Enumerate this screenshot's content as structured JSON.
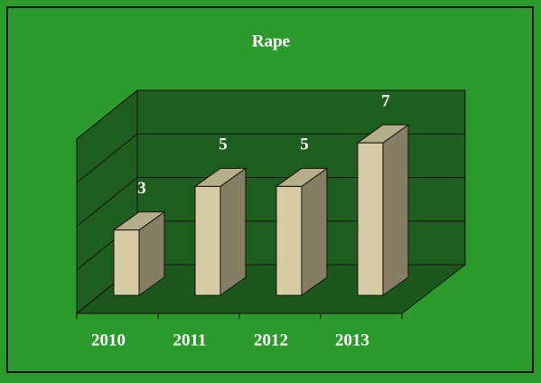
{
  "chart_data": {
    "type": "bar3d",
    "title": "Rape",
    "categories": [
      "2010",
      "2011",
      "2012",
      "2013"
    ],
    "values": [
      3,
      5,
      5,
      7
    ],
    "color": "#d6cba2",
    "ylim": [
      0,
      8
    ],
    "yticks": [
      0,
      2,
      4,
      6,
      8
    ],
    "grid": true
  }
}
